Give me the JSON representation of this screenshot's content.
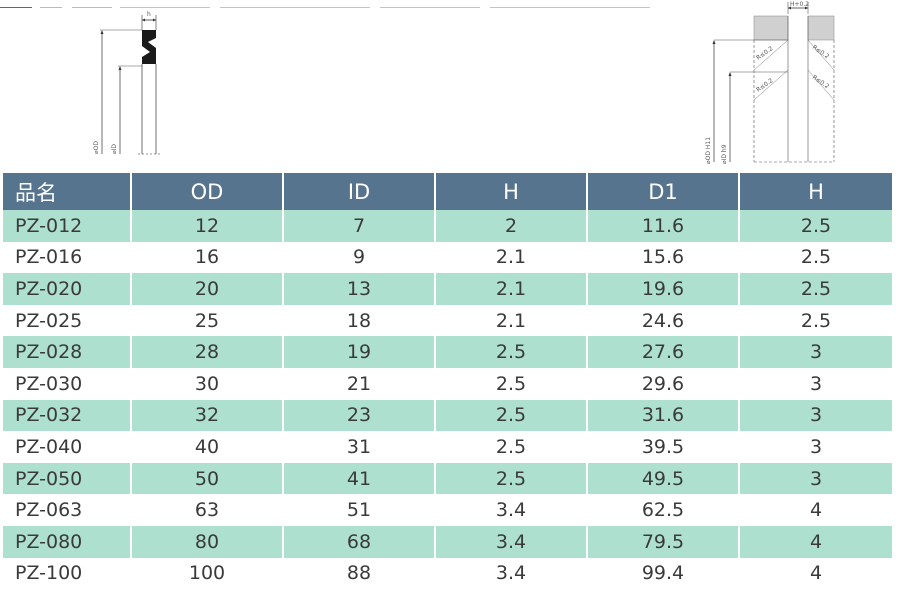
{
  "table": {
    "headers": [
      "品名",
      "OD",
      "ID",
      "H",
      "D1",
      "H"
    ],
    "rows": [
      [
        "PZ-012",
        "12",
        "7",
        "2",
        "11.6",
        "2.5"
      ],
      [
        "PZ-016",
        "16",
        "9",
        "2.1",
        "15.6",
        "2.5"
      ],
      [
        "PZ-020",
        "20",
        "13",
        "2.1",
        "19.6",
        "2.5"
      ],
      [
        "PZ-025",
        "25",
        "18",
        "2.1",
        "24.6",
        "2.5"
      ],
      [
        "PZ-028",
        "28",
        "19",
        "2.5",
        "27.6",
        "3"
      ],
      [
        "PZ-030",
        "30",
        "21",
        "2.5",
        "29.6",
        "3"
      ],
      [
        "PZ-032",
        "32",
        "23",
        "2.5",
        "31.6",
        "3"
      ],
      [
        "PZ-040",
        "40",
        "31",
        "2.5",
        "39.5",
        "3"
      ],
      [
        "PZ-050",
        "50",
        "41",
        "2.5",
        "49.5",
        "3"
      ],
      [
        "PZ-063",
        "63",
        "51",
        "3.4",
        "62.5",
        "4"
      ],
      [
        "PZ-080",
        "80",
        "68",
        "3.4",
        "79.5",
        "4"
      ],
      [
        "PZ-100",
        "100",
        "88",
        "3.4",
        "99.4",
        "4"
      ]
    ]
  },
  "seal_diagram": {
    "h_label": "h",
    "od_label": "⌀OD",
    "id_label": "⌀ID"
  },
  "groove_diagram": {
    "h_label": "H+0.2",
    "r1_label": "R≤0.2",
    "r2_label": "R≤0.2",
    "r3_label": "R≤0.2",
    "r4_label": "R≤0.2",
    "od_label": "⌀OD H11",
    "id_label": "⌀ID h9"
  },
  "colors": {
    "header_bg": "#57748e",
    "row_alt_bg": "#aee0d0",
    "row_plain_bg": "#ffffff",
    "top_strip_text": "#e03030"
  }
}
